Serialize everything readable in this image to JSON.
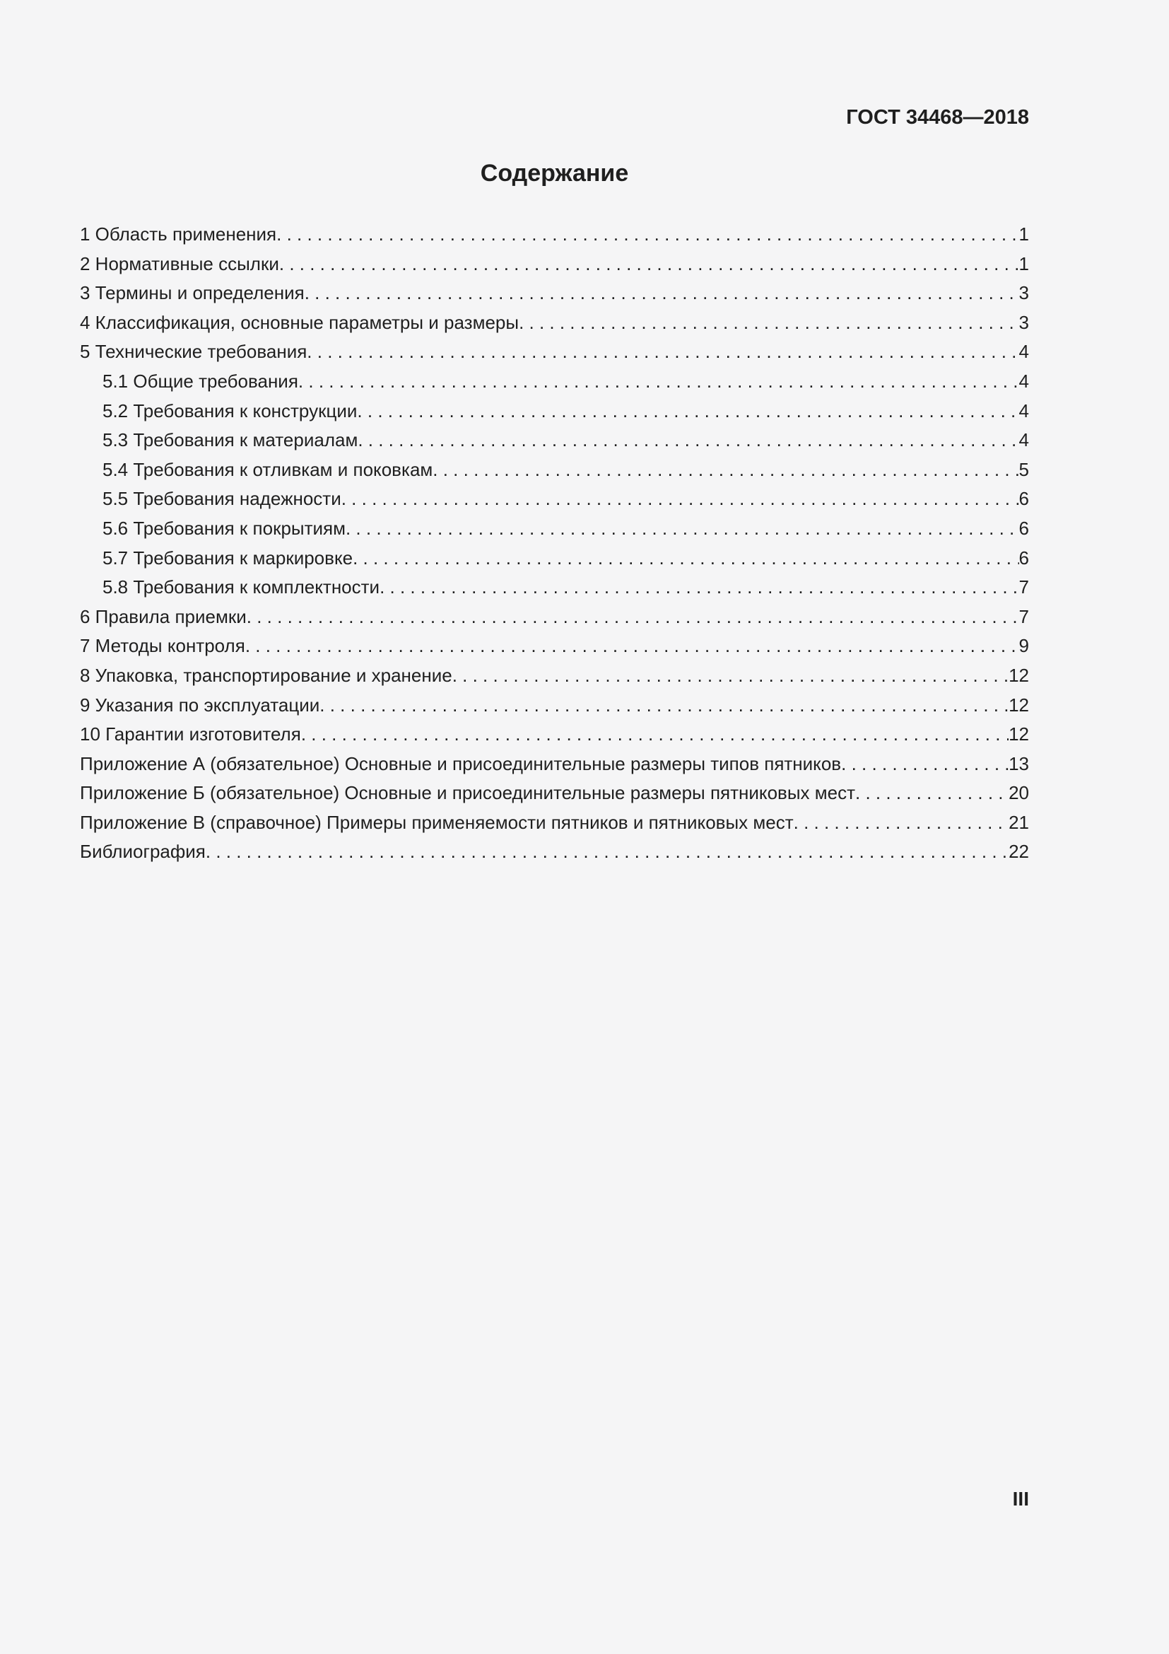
{
  "header": {
    "standard": "ГОСТ 34468—2018"
  },
  "title": "Содержание",
  "footer": {
    "page_number": "III"
  },
  "colors": {
    "background": "#f5f5f6",
    "text": "#1f1f1f"
  },
  "toc": {
    "entries": [
      {
        "label": "1 Область применения",
        "page": "1",
        "level": 0
      },
      {
        "label": "2 Нормативные ссылки",
        "page": "1",
        "level": 0
      },
      {
        "label": "3 Термины и определения",
        "page": "3",
        "level": 0
      },
      {
        "label": "4 Классификация, основные параметры и размеры",
        "page": "3",
        "level": 0
      },
      {
        "label": "5 Технические требования",
        "page": "4",
        "level": 0
      },
      {
        "label": "5.1 Общие требования",
        "page": "4",
        "level": 1
      },
      {
        "label": "5.2 Требования к конструкции",
        "page": "4",
        "level": 1
      },
      {
        "label": "5.3 Требования к материалам",
        "page": "4",
        "level": 1
      },
      {
        "label": "5.4 Требования к отливкам и поковкам",
        "page": "5",
        "level": 1
      },
      {
        "label": "5.5 Требования надежности",
        "page": "6",
        "level": 1
      },
      {
        "label": "5.6 Требования к покрытиям",
        "page": "6",
        "level": 1
      },
      {
        "label": "5.7 Требования к маркировке",
        "page": "6",
        "level": 1
      },
      {
        "label": "5.8 Требования к комплектности",
        "page": "7",
        "level": 1
      },
      {
        "label": "6 Правила приемки",
        "page": "7",
        "level": 0
      },
      {
        "label": "7 Методы контроля",
        "page": "9",
        "level": 0
      },
      {
        "label": "8 Упаковка, транспортирование и хранение",
        "page": "12",
        "level": 0
      },
      {
        "label": "9 Указания по эксплуатации",
        "page": "12",
        "level": 0
      },
      {
        "label": "10 Гарантии изготовителя",
        "page": "12",
        "level": 0
      },
      {
        "label": "Приложение А (обязательное) Основные и присоединительные размеры типов пятников",
        "page": "13",
        "level": 0
      },
      {
        "label": "Приложение Б (обязательное) Основные и присоединительные размеры пятниковых мест",
        "page": "20",
        "level": 0
      },
      {
        "label": "Приложение В (справочное) Примеры применяемости пятников и пятниковых мест",
        "page": "21",
        "level": 0
      },
      {
        "label": "Библиография",
        "page": "22",
        "level": 0
      }
    ]
  }
}
